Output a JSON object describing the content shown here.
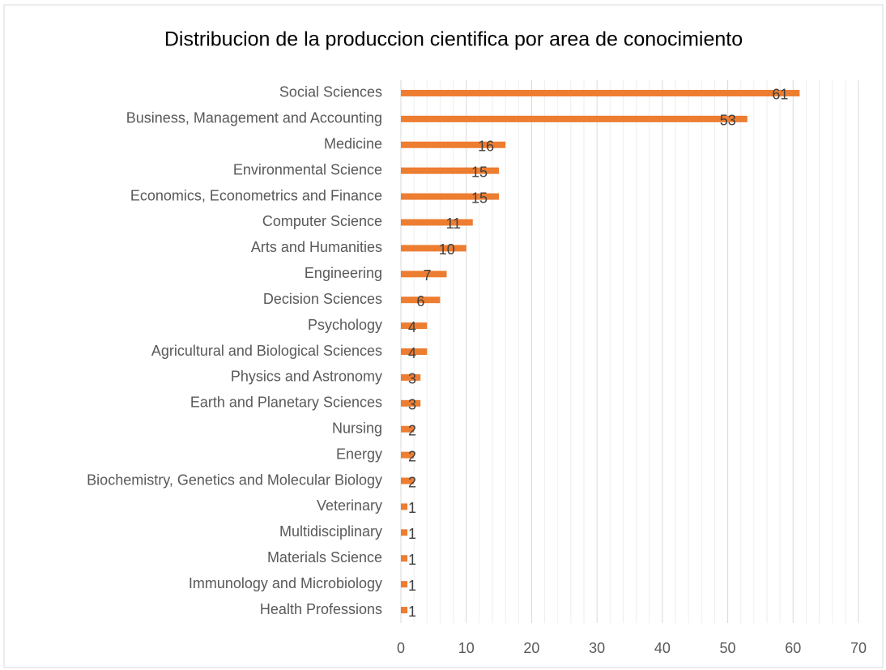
{
  "chart_data": {
    "type": "hbar",
    "title": "Distribucion de la produccion cientifica por area de conocimiento",
    "categories": [
      "Social Sciences",
      "Business, Management and Accounting",
      "Medicine",
      "Environmental Science",
      "Economics, Econometrics and Finance",
      "Computer Science",
      "Arts and Humanities",
      "Engineering",
      "Decision Sciences",
      "Psychology",
      "Agricultural and Biological Sciences",
      "Physics and Astronomy",
      "Earth and Planetary Sciences",
      "Nursing",
      "Energy",
      "Biochemistry, Genetics and Molecular Biology",
      "Veterinary",
      "Multidisciplinary",
      "Materials Science",
      "Immunology and Microbiology",
      "Health Professions"
    ],
    "values": [
      61,
      53,
      16,
      15,
      15,
      11,
      10,
      7,
      6,
      4,
      4,
      3,
      3,
      2,
      2,
      2,
      1,
      1,
      1,
      1,
      1
    ],
    "color": "#ed7d31",
    "xlim": [
      0,
      70
    ],
    "xticks": [
      0,
      10,
      20,
      30,
      40,
      50,
      60,
      70
    ],
    "xminorticks": [
      2,
      4,
      6,
      8,
      12,
      14,
      16,
      18,
      22,
      24,
      26,
      28,
      32,
      34,
      36,
      38,
      42,
      44,
      46,
      48,
      52,
      54,
      56,
      58,
      62,
      64,
      66,
      68
    ],
    "grid": true
  }
}
